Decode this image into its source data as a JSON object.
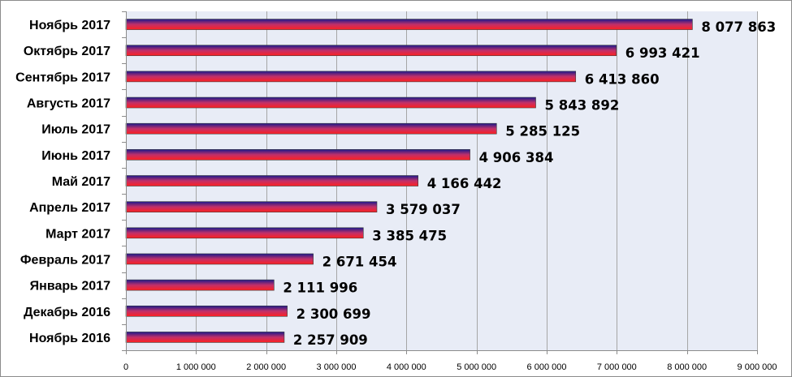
{
  "chart_data": {
    "type": "bar",
    "orientation": "horizontal",
    "categories": [
      "Ноябрь 2017",
      "Октябрь 2017",
      "Сентябрь 2017",
      "Августь 2017",
      "Июль 2017",
      "Июнь 2017",
      "Май 2017",
      "Апрель 2017",
      "Март 2017",
      "Февраль 2017",
      "Январь 2017",
      "Декабрь 2016",
      "Ноябрь 2016"
    ],
    "values": [
      8077863,
      6993421,
      6413860,
      5843892,
      5285125,
      4906384,
      4166442,
      3579037,
      3385475,
      2671454,
      2111996,
      2300699,
      2257909
    ],
    "value_labels": [
      "8 077 863",
      "6 993 421",
      "6 413 860",
      "5 843 892",
      "5 285 125",
      "4 906 384",
      "4 166 442",
      "3 579 037",
      "3 385 475",
      "2 671 454",
      "2 111 996",
      "2 300 699",
      "2 257 909"
    ],
    "xlim": [
      0,
      9000000
    ],
    "x_ticks": [
      0,
      1000000,
      2000000,
      3000000,
      4000000,
      5000000,
      6000000,
      7000000,
      8000000,
      9000000
    ],
    "x_tick_labels": [
      "0",
      "1 000 000",
      "2 000 000",
      "3 000 000",
      "4 000 000",
      "5 000 000",
      "6 000 000",
      "7 000 000",
      "8 000 000",
      "9 000 000"
    ],
    "title": "",
    "xlabel": "",
    "ylabel": "",
    "grid": true,
    "legend": "none",
    "colors": {
      "bar_top": "#1a1a8c",
      "bar_mid": "#c0306a",
      "bar_bottom": "#ff2020",
      "plot_background": "#e8ecf6",
      "gridline": "#a6a6a6",
      "axis": "#8c8c8c"
    }
  }
}
